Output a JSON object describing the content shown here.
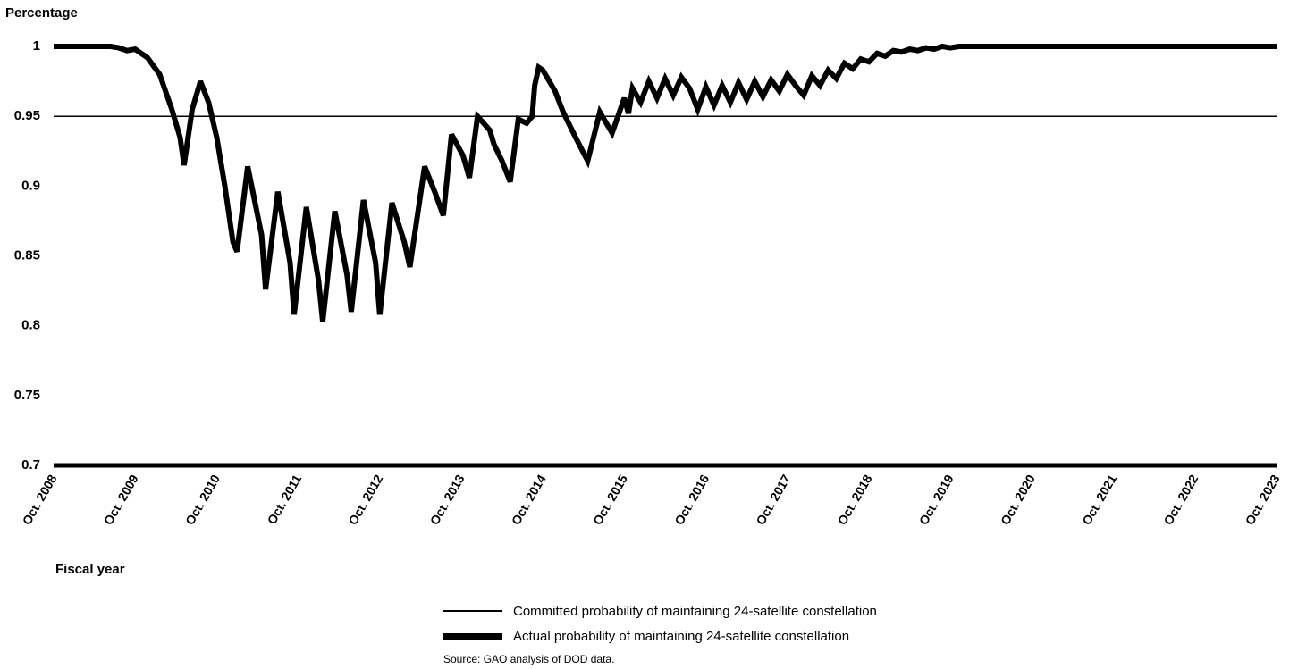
{
  "chart_data": {
    "type": "line",
    "ylabel": "Percentage",
    "xlabel": "Fiscal year",
    "ylim": [
      0.7,
      1.0
    ],
    "xlim": [
      2008,
      2023
    ],
    "y_ticks": [
      "0.7",
      "0.75",
      "0.8",
      "0.85",
      "0.9",
      "0.95",
      "1"
    ],
    "y_tick_values": [
      0.7,
      0.75,
      0.8,
      0.85,
      0.9,
      0.95,
      1.0
    ],
    "x_ticks": [
      "Oct. 2008",
      "Oct. 2009",
      "Oct. 2010",
      "Oct. 2011",
      "Oct. 2012",
      "Oct. 2013",
      "Oct. 2014",
      "Oct. 2015",
      "Oct. 2016",
      "Oct. 2017",
      "Oct. 2018",
      "Oct. 2019",
      "Oct. 2020",
      "Oct. 2021",
      "Oct. 2022",
      "Oct. 2023"
    ],
    "x_tick_values": [
      2008,
      2009,
      2010,
      2011,
      2012,
      2013,
      2014,
      2015,
      2016,
      2017,
      2018,
      2019,
      2020,
      2021,
      2022,
      2023
    ],
    "grid": false,
    "legend_position": "bottom-center",
    "series": [
      {
        "name": "Committed probability of maintaining 24-satellite constellation",
        "style": "thin",
        "x": [
          2008,
          2023
        ],
        "y": [
          0.95,
          0.95
        ]
      },
      {
        "name": "Actual probability of maintaining 24-satellite constellation",
        "style": "thick",
        "x": [
          2008,
          2008.7,
          2008.8,
          2008.9,
          2009.0,
          2009.15,
          2009.3,
          2009.45,
          2009.55,
          2009.6,
          2009.7,
          2009.8,
          2009.9,
          2010.0,
          2010.1,
          2010.2,
          2010.25,
          2010.38,
          2010.55,
          2010.6,
          2010.75,
          2010.9,
          2010.95,
          2011.1,
          2011.25,
          2011.3,
          2011.45,
          2011.6,
          2011.65,
          2011.8,
          2011.95,
          2012.0,
          2012.15,
          2012.3,
          2012.37,
          2012.55,
          2012.68,
          2012.78,
          2012.88,
          2013.02,
          2013.1,
          2013.2,
          2013.35,
          2013.4,
          2013.5,
          2013.6,
          2013.7,
          2013.8,
          2013.87,
          2013.9,
          2013.95,
          2014.0,
          2014.05,
          2014.15,
          2014.25,
          2014.4,
          2014.55,
          2014.7,
          2014.85,
          2015.0,
          2015.05,
          2015.1,
          2015.2,
          2015.3,
          2015.4,
          2015.5,
          2015.6,
          2015.7,
          2015.8,
          2015.9,
          2016.0,
          2016.1,
          2016.2,
          2016.3,
          2016.4,
          2016.5,
          2016.6,
          2016.7,
          2016.8,
          2016.9,
          2017.0,
          2017.1,
          2017.2,
          2017.3,
          2017.4,
          2017.5,
          2017.6,
          2017.7,
          2017.8,
          2017.9,
          2018.0,
          2018.1,
          2018.2,
          2018.3,
          2018.4,
          2018.5,
          2018.6,
          2018.7,
          2018.8,
          2018.9,
          2019.0,
          2019.1,
          2019.2,
          2019.3,
          2019.4,
          2019.5,
          2019.6,
          2019.7,
          2019.8,
          2019.9,
          2020.0,
          2020.1,
          2020.2,
          2020.3,
          2020.4,
          2020.5,
          2020.6,
          2020.7,
          2020.8,
          2021,
          2022,
          2023
        ],
        "y": [
          1.0,
          1.0,
          0.999,
          0.997,
          0.998,
          0.992,
          0.98,
          0.955,
          0.935,
          0.915,
          0.955,
          0.975,
          0.96,
          0.935,
          0.9,
          0.86,
          0.853,
          0.914,
          0.865,
          0.826,
          0.896,
          0.845,
          0.808,
          0.885,
          0.832,
          0.803,
          0.882,
          0.836,
          0.81,
          0.89,
          0.845,
          0.808,
          0.888,
          0.86,
          0.842,
          0.914,
          0.895,
          0.879,
          0.937,
          0.922,
          0.906,
          0.95,
          0.94,
          0.93,
          0.918,
          0.903,
          0.948,
          0.945,
          0.95,
          0.972,
          0.985,
          0.983,
          0.978,
          0.968,
          0.953,
          0.935,
          0.918,
          0.953,
          0.938,
          0.963,
          0.952,
          0.97,
          0.96,
          0.975,
          0.963,
          0.977,
          0.965,
          0.978,
          0.97,
          0.955,
          0.971,
          0.958,
          0.972,
          0.96,
          0.974,
          0.962,
          0.975,
          0.964,
          0.976,
          0.968,
          0.98,
          0.972,
          0.965,
          0.979,
          0.972,
          0.983,
          0.977,
          0.988,
          0.984,
          0.991,
          0.989,
          0.995,
          0.993,
          0.997,
          0.996,
          0.998,
          0.997,
          0.999,
          0.998,
          1.0,
          0.999,
          1.0,
          1.0,
          1.0,
          1.0,
          1.0,
          1.0,
          1.0,
          1.0,
          1.0,
          1.0,
          1.0,
          1.0,
          1.0,
          1.0,
          1.0,
          1.0,
          1.0,
          1.0,
          1.0,
          1.0,
          1.0
        ]
      }
    ]
  },
  "source_note": "Source: GAO analysis of DOD data."
}
